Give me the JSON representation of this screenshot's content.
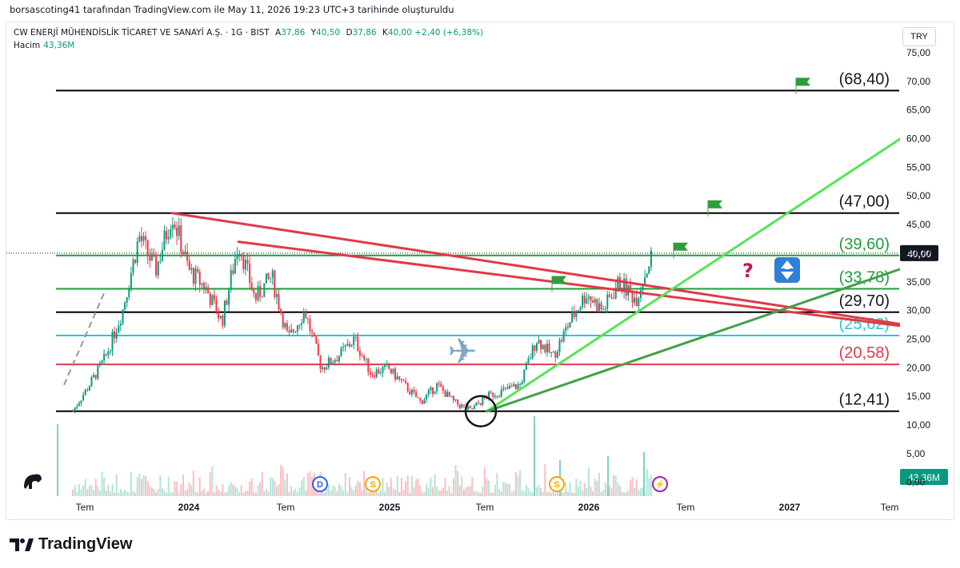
{
  "header": {
    "attribution": "borsascoting41 tarafından TradingView.com ile May 11, 2026 19:23 UTC+3 tarihinde oluşturuldu"
  },
  "legend": {
    "symbol": "CW ENERJİ MÜHENDİSLİK TİCARET VE SANAYİ A.Ş. · 1G · BIST",
    "open_key": "A",
    "open": "37,86",
    "high_key": "Y",
    "high": "40,50",
    "low_key": "D",
    "low": "37,86",
    "close_key": "K",
    "close": "40,00",
    "change": "+2,40 (+6,38%)",
    "volume_label": "Hacim",
    "volume": "43,36M"
  },
  "currency": "TRY",
  "brand": "TradingView",
  "colors": {
    "up": "#089981",
    "down": "#f23645",
    "green_line": "#1e9e3a",
    "red_line": "#e03a48",
    "light_green": "#57e357",
    "dark_green": "#43a047",
    "cyan": "#26c6da",
    "black": "#000000"
  },
  "chart_data": {
    "type": "candlestick",
    "y_axis": {
      "ticks": [
        "75,00",
        "70,00",
        "65,00",
        "60,00",
        "55,00",
        "50,00",
        "45,00",
        "40,00",
        "35,00",
        "30,00",
        "25,00",
        "20,00",
        "15,00",
        "10,00",
        "5,00",
        "0,00"
      ],
      "ylim": [
        0,
        77
      ]
    },
    "x_axis": {
      "ticks": [
        "Tem",
        "2024",
        "Tem",
        "2025",
        "Tem",
        "2026",
        "Tem",
        "2027",
        "Tem"
      ],
      "bold": [
        "2024",
        "2025",
        "2026",
        "2027"
      ]
    },
    "last_price": "40,00",
    "last_volume": "43,36M",
    "horizontal_levels": [
      {
        "value": 68.4,
        "label": "(68,40)",
        "color": "#000000"
      },
      {
        "value": 47.0,
        "label": "(47,00)",
        "color": "#000000"
      },
      {
        "value": 39.6,
        "label": "(39,60)",
        "color": "#1e9e3a"
      },
      {
        "value": 33.78,
        "label": "(33,78)",
        "color": "#1e9e3a"
      },
      {
        "value": 29.7,
        "label": "(29,70)",
        "color": "#000000"
      },
      {
        "value": 25.62,
        "label": "(25,62)",
        "color": "#26c6da"
      },
      {
        "value": 20.58,
        "label": "(20,58)",
        "color": "#e03a48"
      },
      {
        "value": 12.41,
        "label": "(12,41)",
        "color": "#000000"
      }
    ],
    "price_path": [
      {
        "date": "2023-06",
        "v": 12.5
      },
      {
        "date": "2023-07",
        "v": 17
      },
      {
        "date": "2023-08",
        "v": 22
      },
      {
        "date": "2023-09",
        "v": 30
      },
      {
        "date": "2023-10",
        "v": 43
      },
      {
        "date": "2023-11",
        "v": 37
      },
      {
        "date": "2023-12",
        "v": 47
      },
      {
        "date": "2024-01",
        "v": 37
      },
      {
        "date": "2024-02",
        "v": 34
      },
      {
        "date": "2024-03",
        "v": 28
      },
      {
        "date": "2024-04",
        "v": 42
      },
      {
        "date": "2024-05",
        "v": 32
      },
      {
        "date": "2024-06",
        "v": 36
      },
      {
        "date": "2024-07",
        "v": 25
      },
      {
        "date": "2024-08",
        "v": 30
      },
      {
        "date": "2024-09",
        "v": 20
      },
      {
        "date": "2024-10",
        "v": 22
      },
      {
        "date": "2024-11",
        "v": 25
      },
      {
        "date": "2024-12",
        "v": 19
      },
      {
        "date": "2025-01",
        "v": 20
      },
      {
        "date": "2025-02",
        "v": 17
      },
      {
        "date": "2025-03",
        "v": 14
      },
      {
        "date": "2025-04",
        "v": 17
      },
      {
        "date": "2025-05",
        "v": 14
      },
      {
        "date": "2025-06",
        "v": 12.5
      },
      {
        "date": "2025-07",
        "v": 15
      },
      {
        "date": "2025-08",
        "v": 16
      },
      {
        "date": "2025-09",
        "v": 17
      },
      {
        "date": "2025-10",
        "v": 25
      },
      {
        "date": "2025-11",
        "v": 22
      },
      {
        "date": "2025-12",
        "v": 28
      },
      {
        "date": "2026-01",
        "v": 33
      },
      {
        "date": "2026-02",
        "v": 30
      },
      {
        "date": "2026-03",
        "v": 35
      },
      {
        "date": "2026-04",
        "v": 32
      },
      {
        "date": "2026-05",
        "v": 40
      }
    ],
    "trendlines": [
      {
        "name": "red-downtrend-1",
        "color": "#e03a48",
        "from": {
          "date": "2023-12",
          "v": 47
        },
        "to": {
          "date": "2027-08",
          "v": 27.5
        }
      },
      {
        "name": "red-downtrend-2",
        "color": "#e03a48",
        "from": {
          "date": "2024-04",
          "v": 42
        },
        "to": {
          "date": "2027-08",
          "v": 27.2
        }
      },
      {
        "name": "light-green-uptrend",
        "color": "#57e357",
        "from": {
          "date": "2025-07",
          "v": 12.4
        },
        "to": {
          "date": "2027-08",
          "v": 60.5
        }
      },
      {
        "name": "dark-green-uptrend",
        "color": "#43a047",
        "from": {
          "date": "2025-07",
          "v": 12.4
        },
        "to": {
          "date": "2027-08",
          "v": 37.5
        }
      }
    ],
    "flags_at": [
      68.4,
      47.0,
      39.6,
      33.78
    ],
    "annotations": [
      "?",
      "↕",
      "✈",
      "◯ 12,41"
    ]
  }
}
